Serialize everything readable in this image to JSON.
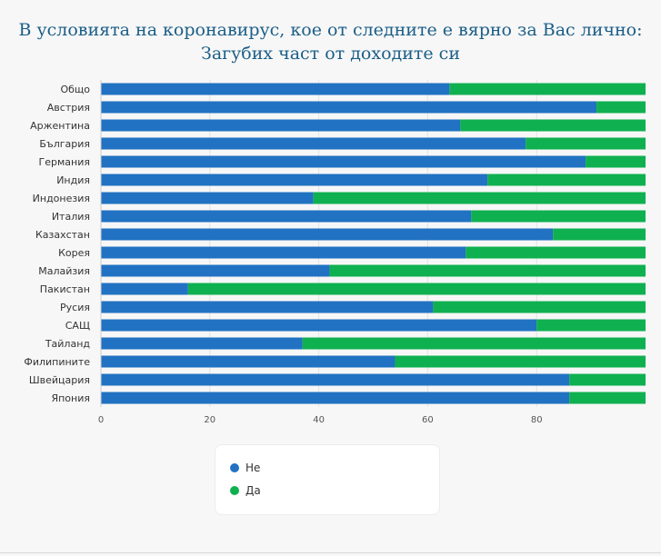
{
  "chart_data": {
    "type": "bar",
    "orientation": "horizontal",
    "stacked": true,
    "title": "В условията на коронавирус, кое от следните е вярно за Вас лично: Загубих част от доходите си",
    "categories": [
      "Общо",
      "Австрия",
      "Аржентина",
      "България",
      "Германия",
      "Индия",
      "Индонезия",
      "Италия",
      "Казахстан",
      "Корея",
      "Малайзия",
      "Пакистан",
      "Русия",
      "САЩ",
      "Тайланд",
      "Филипините",
      "Швейцария",
      "Япония"
    ],
    "series": [
      {
        "name": "Не",
        "color": "#2172c2",
        "values": [
          64,
          91,
          66,
          78,
          89,
          71,
          39,
          68,
          83,
          67,
          42,
          16,
          61,
          80,
          37,
          54,
          86,
          86
        ]
      },
      {
        "name": "Да",
        "color": "#0fb050",
        "values": [
          36,
          9,
          34,
          22,
          11,
          29,
          61,
          32,
          17,
          33,
          58,
          84,
          39,
          20,
          63,
          46,
          14,
          14
        ]
      }
    ],
    "xlim": [
      0,
      100
    ],
    "xticks": [
      0,
      20,
      40,
      60,
      80
    ],
    "grid": true,
    "legend_position": "bottom"
  }
}
